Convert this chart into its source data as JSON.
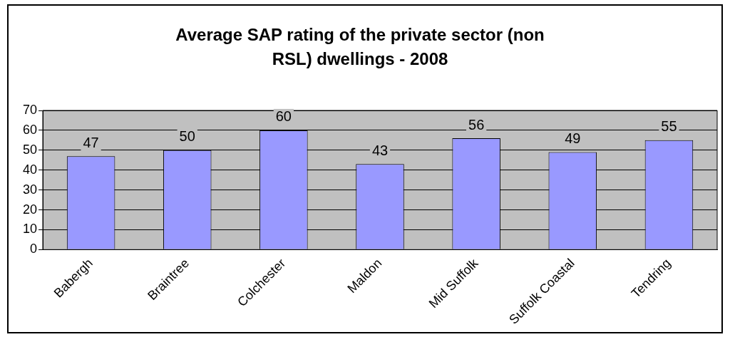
{
  "chart_data": {
    "type": "bar",
    "title": "Average SAP rating of the private sector (non RSL) dwellings - 2008",
    "categories": [
      "Babergh",
      "Braintree",
      "Colchester",
      "Maldon",
      "Mid Suffolk",
      "Suffolk Coastal",
      "Tendring"
    ],
    "values": [
      47,
      50,
      60,
      43,
      56,
      49,
      55
    ],
    "color": "#9999ff",
    "ylim": [
      0,
      70
    ],
    "yticks": [
      0,
      10,
      20,
      30,
      40,
      50,
      60,
      70
    ],
    "grid": "y",
    "data_labels": true,
    "legend": false
  }
}
